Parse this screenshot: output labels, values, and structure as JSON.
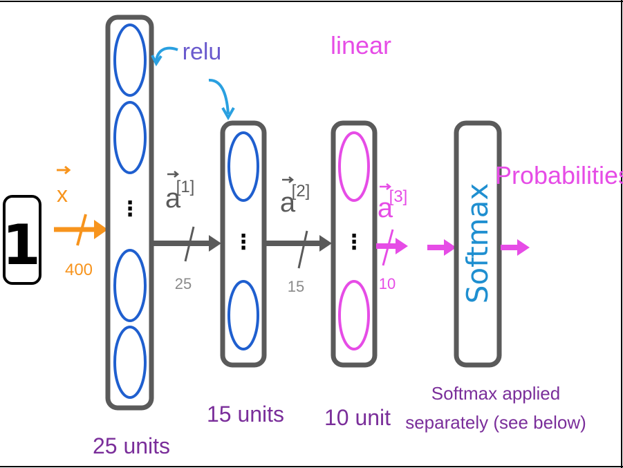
{
  "input": {
    "digit": "1",
    "vector_label": "x",
    "dim": "400"
  },
  "layer1": {
    "activation": "relu",
    "units_label": "25 units",
    "output_label": "a",
    "output_superscript": "[1]",
    "output_dim": "25"
  },
  "layer2": {
    "units_label": "15 units",
    "output_label": "a",
    "output_superscript": "[2]",
    "output_dim": "15"
  },
  "layer3": {
    "activation": "linear",
    "units_label": "10 unit",
    "output_label": "a",
    "output_superscript": "[3]",
    "output_dim": "10"
  },
  "softmax": {
    "box_label": "Softmax",
    "note_line1": "Softmax applied",
    "note_line2": "separately (see below)",
    "output_label": "Probabilities"
  },
  "colors": {
    "orange": "#f7941d",
    "gray": "#5a5a5a",
    "lightgray": "#8a8a8a",
    "blue": "#1f5fcf",
    "magenta": "#e64ce6",
    "purple": "#7a2e9a",
    "relu_text": "#6a5acd",
    "relu_arrow": "#2aa0e0"
  }
}
